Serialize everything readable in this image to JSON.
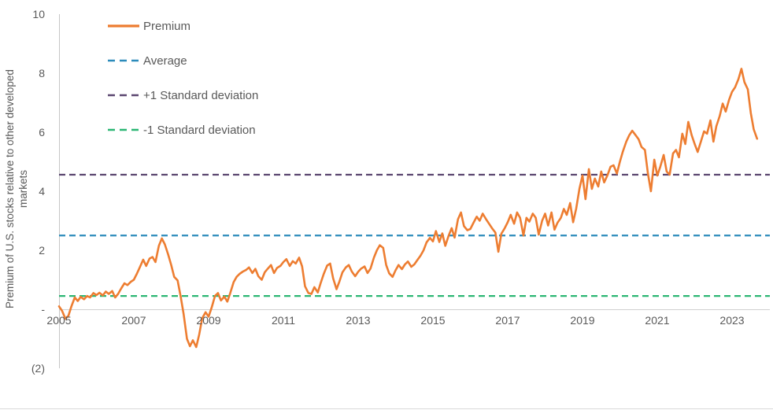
{
  "chart_data": {
    "type": "line",
    "title": "",
    "xlabel": "",
    "ylabel": "Premium of U.S. stocks relative to other developed markets",
    "ylabel_lines": [
      "Premium of U.S. stocks relative to other developed",
      "markets"
    ],
    "ylim": [
      -2,
      10
    ],
    "xlim": [
      2005,
      2024.2
    ],
    "grid": false,
    "legend_position": "top-left-inside",
    "axis_color": "#c6c6c6",
    "zero_line_color": "#d0d0d0",
    "text_color": "#595959",
    "y_ticks": [
      {
        "value": 10,
        "label": "10"
      },
      {
        "value": 8,
        "label": "8"
      },
      {
        "value": 6,
        "label": "6"
      },
      {
        "value": 4,
        "label": "4"
      },
      {
        "value": 2,
        "label": "2"
      },
      {
        "value": 0,
        "label": "-"
      },
      {
        "value": -2,
        "label": "(2)"
      }
    ],
    "x_ticks": [
      {
        "value": 2005,
        "label": "2005"
      },
      {
        "value": 2007,
        "label": "2007"
      },
      {
        "value": 2009,
        "label": "2009"
      },
      {
        "value": 2011,
        "label": "2011"
      },
      {
        "value": 2013,
        "label": "2013"
      },
      {
        "value": 2015,
        "label": "2015"
      },
      {
        "value": 2017,
        "label": "2017"
      },
      {
        "value": 2019,
        "label": "2019"
      },
      {
        "value": 2021,
        "label": "2021"
      },
      {
        "value": 2023,
        "label": "2023"
      }
    ],
    "legend": [
      {
        "label": "Premium",
        "color": "#ED7D31",
        "style": "solid"
      },
      {
        "label": "Average",
        "color": "#2C8BBB",
        "style": "dashed"
      },
      {
        "label": "+1 Standard deviation",
        "color": "#5B4770",
        "style": "dashed"
      },
      {
        "label": "-1 Standard deviation",
        "color": "#2BB673",
        "style": "dashed"
      }
    ],
    "ref_lines": [
      {
        "name": "average",
        "value": 2.5,
        "color": "#2C8BBB"
      },
      {
        "name": "plus1-std-dev",
        "value": 4.56,
        "color": "#5B4770"
      },
      {
        "name": "minus1-std-dev",
        "value": 0.45,
        "color": "#2BB673"
      }
    ],
    "series": [
      {
        "name": "Premium",
        "color": "#ED7D31",
        "points": [
          [
            2005.0,
            0.1
          ],
          [
            2005.08,
            -0.05
          ],
          [
            2005.17,
            -0.32
          ],
          [
            2005.25,
            -0.22
          ],
          [
            2005.33,
            0.1
          ],
          [
            2005.42,
            0.4
          ],
          [
            2005.5,
            0.28
          ],
          [
            2005.58,
            0.42
          ],
          [
            2005.67,
            0.34
          ],
          [
            2005.75,
            0.45
          ],
          [
            2005.83,
            0.4
          ],
          [
            2005.92,
            0.55
          ],
          [
            2006.0,
            0.48
          ],
          [
            2006.08,
            0.56
          ],
          [
            2006.17,
            0.47
          ],
          [
            2006.25,
            0.6
          ],
          [
            2006.33,
            0.52
          ],
          [
            2006.42,
            0.62
          ],
          [
            2006.5,
            0.4
          ],
          [
            2006.58,
            0.52
          ],
          [
            2006.67,
            0.72
          ],
          [
            2006.75,
            0.88
          ],
          [
            2006.83,
            0.82
          ],
          [
            2006.92,
            0.93
          ],
          [
            2007.0,
            1.0
          ],
          [
            2007.08,
            1.2
          ],
          [
            2007.17,
            1.45
          ],
          [
            2007.25,
            1.68
          ],
          [
            2007.33,
            1.47
          ],
          [
            2007.42,
            1.72
          ],
          [
            2007.5,
            1.77
          ],
          [
            2007.58,
            1.6
          ],
          [
            2007.67,
            2.15
          ],
          [
            2007.75,
            2.4
          ],
          [
            2007.83,
            2.2
          ],
          [
            2007.92,
            1.85
          ],
          [
            2008.0,
            1.5
          ],
          [
            2008.08,
            1.1
          ],
          [
            2008.17,
            0.98
          ],
          [
            2008.25,
            0.45
          ],
          [
            2008.33,
            -0.15
          ],
          [
            2008.42,
            -1.0
          ],
          [
            2008.5,
            -1.25
          ],
          [
            2008.58,
            -1.05
          ],
          [
            2008.67,
            -1.28
          ],
          [
            2008.75,
            -0.85
          ],
          [
            2008.83,
            -0.3
          ],
          [
            2008.92,
            -0.1
          ],
          [
            2009.0,
            -0.25
          ],
          [
            2009.08,
            0.05
          ],
          [
            2009.17,
            0.45
          ],
          [
            2009.25,
            0.55
          ],
          [
            2009.33,
            0.3
          ],
          [
            2009.42,
            0.43
          ],
          [
            2009.5,
            0.26
          ],
          [
            2009.58,
            0.55
          ],
          [
            2009.67,
            0.92
          ],
          [
            2009.75,
            1.1
          ],
          [
            2009.83,
            1.2
          ],
          [
            2009.92,
            1.28
          ],
          [
            2010.0,
            1.33
          ],
          [
            2010.08,
            1.42
          ],
          [
            2010.17,
            1.23
          ],
          [
            2010.25,
            1.37
          ],
          [
            2010.33,
            1.12
          ],
          [
            2010.42,
            1.0
          ],
          [
            2010.5,
            1.25
          ],
          [
            2010.58,
            1.37
          ],
          [
            2010.67,
            1.5
          ],
          [
            2010.75,
            1.23
          ],
          [
            2010.83,
            1.4
          ],
          [
            2010.92,
            1.47
          ],
          [
            2011.0,
            1.6
          ],
          [
            2011.08,
            1.7
          ],
          [
            2011.17,
            1.47
          ],
          [
            2011.25,
            1.63
          ],
          [
            2011.33,
            1.55
          ],
          [
            2011.42,
            1.75
          ],
          [
            2011.5,
            1.45
          ],
          [
            2011.58,
            0.78
          ],
          [
            2011.67,
            0.55
          ],
          [
            2011.75,
            0.52
          ],
          [
            2011.83,
            0.75
          ],
          [
            2011.92,
            0.57
          ],
          [
            2012.0,
            0.9
          ],
          [
            2012.08,
            1.2
          ],
          [
            2012.17,
            1.48
          ],
          [
            2012.25,
            1.55
          ],
          [
            2012.33,
            1.05
          ],
          [
            2012.42,
            0.68
          ],
          [
            2012.5,
            0.95
          ],
          [
            2012.58,
            1.25
          ],
          [
            2012.67,
            1.42
          ],
          [
            2012.75,
            1.5
          ],
          [
            2012.83,
            1.28
          ],
          [
            2012.92,
            1.12
          ],
          [
            2013.0,
            1.27
          ],
          [
            2013.08,
            1.38
          ],
          [
            2013.17,
            1.45
          ],
          [
            2013.25,
            1.23
          ],
          [
            2013.33,
            1.38
          ],
          [
            2013.42,
            1.75
          ],
          [
            2013.5,
            2.0
          ],
          [
            2013.58,
            2.17
          ],
          [
            2013.67,
            2.08
          ],
          [
            2013.75,
            1.5
          ],
          [
            2013.83,
            1.22
          ],
          [
            2013.92,
            1.1
          ],
          [
            2014.0,
            1.32
          ],
          [
            2014.08,
            1.5
          ],
          [
            2014.17,
            1.36
          ],
          [
            2014.25,
            1.52
          ],
          [
            2014.33,
            1.62
          ],
          [
            2014.42,
            1.44
          ],
          [
            2014.5,
            1.52
          ],
          [
            2014.58,
            1.66
          ],
          [
            2014.67,
            1.82
          ],
          [
            2014.75,
            2.0
          ],
          [
            2014.83,
            2.27
          ],
          [
            2014.92,
            2.42
          ],
          [
            2015.0,
            2.3
          ],
          [
            2015.08,
            2.65
          ],
          [
            2015.17,
            2.28
          ],
          [
            2015.25,
            2.57
          ],
          [
            2015.33,
            2.15
          ],
          [
            2015.42,
            2.5
          ],
          [
            2015.5,
            2.75
          ],
          [
            2015.58,
            2.43
          ],
          [
            2015.67,
            3.05
          ],
          [
            2015.75,
            3.28
          ],
          [
            2015.83,
            2.82
          ],
          [
            2015.92,
            2.68
          ],
          [
            2016.0,
            2.72
          ],
          [
            2016.08,
            2.92
          ],
          [
            2016.17,
            3.14
          ],
          [
            2016.25,
            3.0
          ],
          [
            2016.33,
            3.24
          ],
          [
            2016.42,
            3.05
          ],
          [
            2016.5,
            2.9
          ],
          [
            2016.58,
            2.75
          ],
          [
            2016.67,
            2.6
          ],
          [
            2016.75,
            1.95
          ],
          [
            2016.83,
            2.56
          ],
          [
            2016.92,
            2.75
          ],
          [
            2017.0,
            2.95
          ],
          [
            2017.08,
            3.2
          ],
          [
            2017.17,
            2.9
          ],
          [
            2017.25,
            3.28
          ],
          [
            2017.33,
            3.1
          ],
          [
            2017.42,
            2.5
          ],
          [
            2017.5,
            3.1
          ],
          [
            2017.58,
            2.97
          ],
          [
            2017.67,
            3.24
          ],
          [
            2017.75,
            3.1
          ],
          [
            2017.83,
            2.53
          ],
          [
            2017.92,
            3.0
          ],
          [
            2018.0,
            3.24
          ],
          [
            2018.08,
            2.84
          ],
          [
            2018.17,
            3.28
          ],
          [
            2018.25,
            2.7
          ],
          [
            2018.33,
            2.93
          ],
          [
            2018.42,
            3.1
          ],
          [
            2018.5,
            3.4
          ],
          [
            2018.58,
            3.2
          ],
          [
            2018.67,
            3.6
          ],
          [
            2018.75,
            2.95
          ],
          [
            2018.83,
            3.4
          ],
          [
            2018.92,
            4.1
          ],
          [
            2019.0,
            4.53
          ],
          [
            2019.08,
            3.73
          ],
          [
            2019.17,
            4.75
          ],
          [
            2019.25,
            4.08
          ],
          [
            2019.33,
            4.43
          ],
          [
            2019.42,
            4.16
          ],
          [
            2019.5,
            4.67
          ],
          [
            2019.58,
            4.3
          ],
          [
            2019.67,
            4.55
          ],
          [
            2019.75,
            4.83
          ],
          [
            2019.83,
            4.88
          ],
          [
            2019.92,
            4.6
          ],
          [
            2020.0,
            5.0
          ],
          [
            2020.08,
            5.35
          ],
          [
            2020.17,
            5.68
          ],
          [
            2020.25,
            5.9
          ],
          [
            2020.33,
            6.05
          ],
          [
            2020.42,
            5.9
          ],
          [
            2020.5,
            5.76
          ],
          [
            2020.58,
            5.5
          ],
          [
            2020.67,
            5.4
          ],
          [
            2020.75,
            4.6
          ],
          [
            2020.83,
            4.0
          ],
          [
            2020.92,
            5.07
          ],
          [
            2021.0,
            4.53
          ],
          [
            2021.08,
            4.83
          ],
          [
            2021.17,
            5.23
          ],
          [
            2021.25,
            4.67
          ],
          [
            2021.33,
            4.56
          ],
          [
            2021.42,
            5.28
          ],
          [
            2021.5,
            5.4
          ],
          [
            2021.58,
            5.15
          ],
          [
            2021.67,
            5.95
          ],
          [
            2021.75,
            5.6
          ],
          [
            2021.83,
            6.35
          ],
          [
            2021.92,
            5.9
          ],
          [
            2022.0,
            5.6
          ],
          [
            2022.08,
            5.33
          ],
          [
            2022.17,
            5.7
          ],
          [
            2022.25,
            6.03
          ],
          [
            2022.33,
            5.95
          ],
          [
            2022.42,
            6.4
          ],
          [
            2022.5,
            5.68
          ],
          [
            2022.58,
            6.2
          ],
          [
            2022.67,
            6.55
          ],
          [
            2022.75,
            6.97
          ],
          [
            2022.83,
            6.7
          ],
          [
            2022.92,
            7.1
          ],
          [
            2023.0,
            7.37
          ],
          [
            2023.08,
            7.52
          ],
          [
            2023.17,
            7.8
          ],
          [
            2023.25,
            8.15
          ],
          [
            2023.33,
            7.7
          ],
          [
            2023.42,
            7.45
          ],
          [
            2023.5,
            6.65
          ],
          [
            2023.58,
            6.1
          ],
          [
            2023.67,
            5.78
          ]
        ]
      }
    ]
  }
}
